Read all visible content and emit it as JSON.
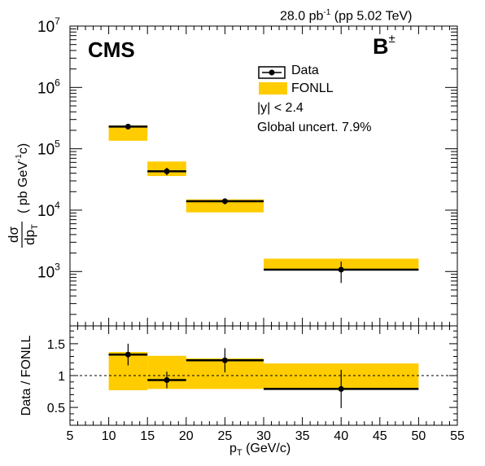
{
  "header": {
    "experiment": "CMS",
    "particle": "B",
    "particle_charge": "±",
    "lumi_value": "28.0 pb",
    "lumi_exponent": "-1",
    "lumi_condition": " (pp 5.02 TeV)"
  },
  "legend": {
    "position": "top-right",
    "entries": [
      {
        "label": "Data",
        "style": "marker-box"
      },
      {
        "label": "FONLL",
        "style": "filled-box"
      }
    ],
    "rapidity_cut": "|y| < 2.4",
    "global_uncert": "Global uncert. 7.9%"
  },
  "axes": {
    "x_title_main": "p",
    "x_title_sub": "T",
    "x_title_unit": " (GeV/c)",
    "y_title_top": "dσ",
    "y_title_bottom": "dp",
    "y_title_bottom_sub": "T",
    "y_title_unit_start": "( pb GeV",
    "y_title_unit_exp": "-1",
    "y_title_unit_end": "c)",
    "ratio_title": "Data / FONLL",
    "x_tick_labels": [
      "5",
      "10",
      "15",
      "20",
      "25",
      "30",
      "35",
      "40",
      "45",
      "50",
      "55"
    ],
    "y_tick_exponents": [
      "3",
      "4",
      "5",
      "6",
      "7"
    ],
    "ratio_tick_labels": [
      "0.5",
      "1",
      "1.5"
    ]
  },
  "colors": {
    "fonll_band": "#ffcc00",
    "data_marker": "#000000",
    "frame": "#000000"
  },
  "chart_data": [
    {
      "type": "scatter",
      "panel": "cross-section",
      "xlabel": "p_T (GeV/c)",
      "ylabel": "dσ/dp_T ( pb GeV^-1 c)",
      "xlim": [
        5,
        55
      ],
      "ylim": [
        130,
        10000000
      ],
      "y_scale": "log",
      "grid": false,
      "series": [
        {
          "name": "Data",
          "bins": [
            {
              "x_low": 10,
              "x_high": 15,
              "x": 12.5,
              "y": 230000,
              "y_err_low": 20000,
              "y_err_high": 20000
            },
            {
              "x_low": 15,
              "x_high": 20,
              "x": 17.5,
              "y": 43000,
              "y_err_low": 6000,
              "y_err_high": 6000
            },
            {
              "x_low": 20,
              "x_high": 30,
              "x": 25,
              "y": 14000,
              "y_err_low": 1600,
              "y_err_high": 1600
            },
            {
              "x_low": 30,
              "x_high": 50,
              "x": 40,
              "y": 1070,
              "y_err_low": 420,
              "y_err_high": 380
            }
          ]
        },
        {
          "name": "FONLL",
          "bins": [
            {
              "x_low": 10,
              "x_high": 15,
              "y_low": 135000,
              "y_high": 240000
            },
            {
              "x_low": 15,
              "x_high": 20,
              "y_low": 36000,
              "y_high": 62000
            },
            {
              "x_low": 20,
              "x_high": 30,
              "y_low": 9200,
              "y_high": 15000
            },
            {
              "x_low": 30,
              "x_high": 50,
              "y_low": 1040,
              "y_high": 1620
            }
          ]
        }
      ]
    },
    {
      "type": "scatter",
      "panel": "ratio",
      "xlabel": "p_T (GeV/c)",
      "ylabel": "Data / FONLL",
      "xlim": [
        5,
        55
      ],
      "ylim": [
        0.22,
        1.78
      ],
      "reference_line": 1,
      "grid": false,
      "series": [
        {
          "name": "Data",
          "bins": [
            {
              "x_low": 10,
              "x_high": 15,
              "x": 12.5,
              "y": 1.33,
              "y_err_low": 0.17,
              "y_err_high": 0.17
            },
            {
              "x_low": 15,
              "x_high": 20,
              "x": 17.5,
              "y": 0.93,
              "y_err_low": 0.13,
              "y_err_high": 0.13
            },
            {
              "x_low": 20,
              "x_high": 30,
              "x": 25,
              "y": 1.24,
              "y_err_low": 0.19,
              "y_err_high": 0.19
            },
            {
              "x_low": 30,
              "x_high": 50,
              "x": 40,
              "y": 0.79,
              "y_err_low": 0.3,
              "y_err_high": 0.3
            }
          ]
        },
        {
          "name": "FONLL",
          "bins": [
            {
              "x_low": 10,
              "x_high": 15,
              "y_low": 0.77,
              "y_high": 1.37
            },
            {
              "x_low": 15,
              "x_high": 20,
              "y_low": 0.79,
              "y_high": 1.31
            },
            {
              "x_low": 20,
              "x_high": 30,
              "y_low": 0.79,
              "y_high": 1.27
            },
            {
              "x_low": 30,
              "x_high": 50,
              "y_low": 0.8,
              "y_high": 1.19
            }
          ]
        }
      ]
    }
  ]
}
